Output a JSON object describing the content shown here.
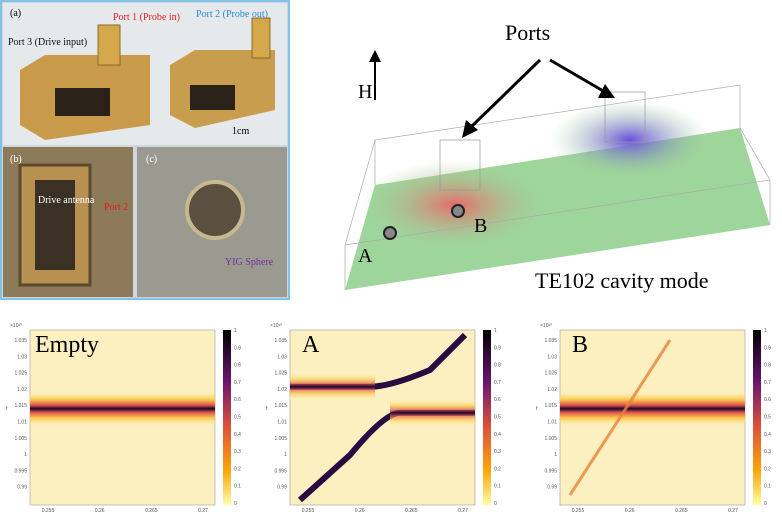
{
  "photos": {
    "a": {
      "label": "(a)",
      "port3": "Port 3 (Drive input)",
      "port1": "Port 1 (Probe in)",
      "port2": "Port 2 (Probe out)",
      "scale": "1cm"
    },
    "b": {
      "label": "(b)",
      "antenna": "Drive antenna",
      "port2": "Port 2"
    },
    "c": {
      "label": "(c)",
      "sphere": "YIG Sphere"
    }
  },
  "cavity": {
    "ports": "Ports",
    "field": "H",
    "point_a": "A",
    "point_b": "B",
    "mode": "TE102 cavity mode"
  },
  "maps": [
    {
      "label": "Empty"
    },
    {
      "label": "A"
    },
    {
      "label": "B"
    }
  ],
  "axes": {
    "y_exponent": "×10¹⁰",
    "y_label": "f",
    "yticks": [
      "1.035",
      "1.03",
      "1.025",
      "1.02",
      "1.015",
      "1.01",
      "1.005",
      "1",
      "0.995",
      "0.99"
    ],
    "xticks": [
      "0.255",
      "0.26",
      "0.265",
      "0.27"
    ],
    "cbar_ticks": [
      "1",
      "0.9",
      "0.8",
      "0.7",
      "0.6",
      "0.5",
      "0.4",
      "0.3",
      "0.2",
      "0.1",
      "0"
    ]
  }
}
